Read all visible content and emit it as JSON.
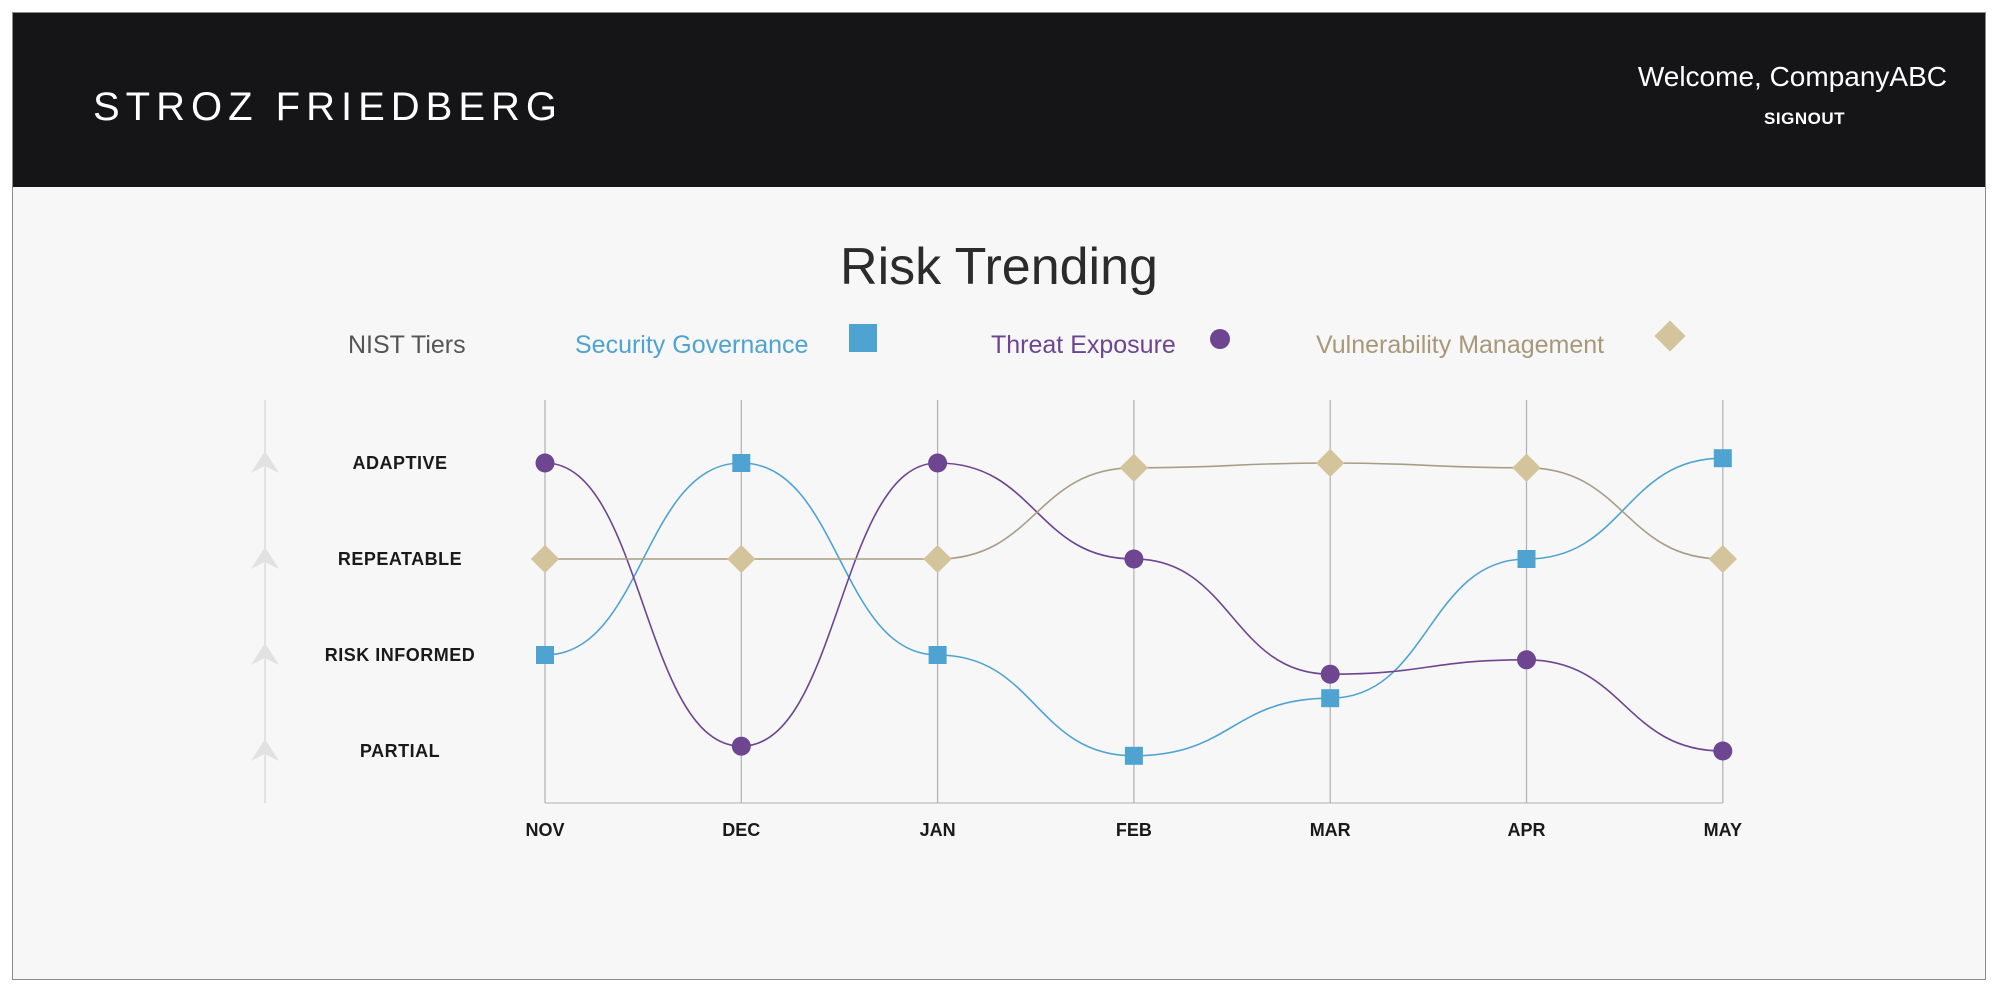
{
  "header": {
    "brand": "STROZ  FRIEDBERG",
    "welcome": "Welcome, CompanyABC",
    "signout": "SIGNOUT"
  },
  "colors": {
    "header_bg": "#151417",
    "security_governance": "#4fa3d1",
    "threat_exposure": "#6d4590",
    "vulnerability_management": "#d3c49b",
    "vulnerability_line": "#a89e86",
    "tier_label": "#1a1a1a",
    "arrow": "#e2e2e2"
  },
  "legend": {
    "nist_tiers": "NIST Tiers",
    "items": [
      {
        "label": "Security Governance",
        "text_color": "#4fa3d1",
        "marker": "square-icon"
      },
      {
        "label": "Threat Exposure",
        "text_color": "#6d4590",
        "marker": "circle-icon"
      },
      {
        "label": "Vulnerability Management",
        "text_color": "#a8987a",
        "marker": "diamond-icon"
      }
    ]
  },
  "chart_data": {
    "type": "line",
    "title": "Risk Trending",
    "categories": [
      "NOV",
      "DEC",
      "JAN",
      "FEB",
      "MAR",
      "APR",
      "MAY"
    ],
    "y_tiers": [
      "PARTIAL",
      "RISK INFORMED",
      "REPEATABLE",
      "ADAPTIVE"
    ],
    "ylim": [
      1,
      4
    ],
    "grid": "vertical",
    "legend_position": "top",
    "series": [
      {
        "name": "Security Governance",
        "marker": "square",
        "values": [
          2,
          4,
          2,
          0.95,
          1.55,
          3,
          4.05
        ]
      },
      {
        "name": "Threat Exposure",
        "marker": "circle",
        "values": [
          4,
          1.05,
          4,
          3,
          1.8,
          1.95,
          1
        ]
      },
      {
        "name": "Vulnerability Management",
        "marker": "diamond",
        "values": [
          3,
          3,
          3,
          3.95,
          4,
          3.95,
          3
        ]
      }
    ]
  }
}
